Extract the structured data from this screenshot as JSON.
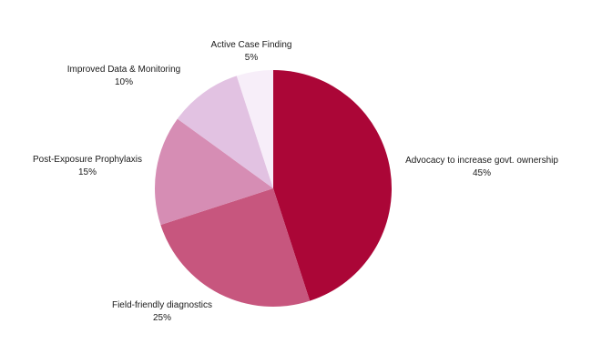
{
  "chart_data": {
    "type": "pie",
    "title": "",
    "start": "12 o'clock",
    "direction": "clockwise",
    "slices": [
      {
        "label": "Advocacy to increase govt. ownership",
        "value": 45,
        "value_label": "45%",
        "color": "#ab0637"
      },
      {
        "label": "Field-friendly diagnostics",
        "value": 25,
        "value_label": "25%",
        "color": "#c7567e"
      },
      {
        "label": "Post-Exposure Prophylaxis",
        "value": 15,
        "value_label": "15%",
        "color": "#d68db4"
      },
      {
        "label": "Improved Data & Monitoring",
        "value": 10,
        "value_label": "10%",
        "color": "#e2c2e2"
      },
      {
        "label": "Active Case Finding",
        "value": 5,
        "value_label": "5%",
        "color": "#f7eef9"
      }
    ]
  }
}
